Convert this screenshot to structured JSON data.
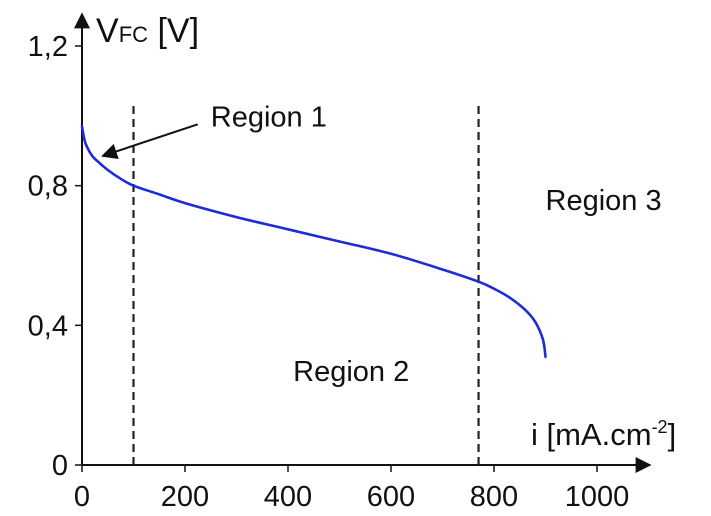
{
  "chart_data": {
    "type": "line",
    "title": "",
    "ylabel": {
      "main": "V",
      "sub": "FC",
      "unit": " [V]"
    },
    "xlabel": {
      "main": "i [mA.cm",
      "sup": "-2",
      "end": "]"
    },
    "xlim": [
      0,
      1000
    ],
    "ylim": [
      0,
      1.2
    ],
    "xticks": [
      {
        "value": 0,
        "label": "0"
      },
      {
        "value": 200,
        "label": "200"
      },
      {
        "value": 400,
        "label": "400"
      },
      {
        "value": 600,
        "label": "600"
      },
      {
        "value": 800,
        "label": "800"
      },
      {
        "value": 1000,
        "label": "1000"
      }
    ],
    "yticks": [
      {
        "value": 0,
        "label": "0"
      },
      {
        "value": 0.4,
        "label": "0,4"
      },
      {
        "value": 0.8,
        "label": "0,8"
      },
      {
        "value": 1.2,
        "label": "1,2"
      }
    ],
    "grid": false,
    "series": [
      {
        "color": "#1f2bd6",
        "x": [
          0,
          5,
          10,
          20,
          30,
          50,
          75,
          100,
          150,
          200,
          300,
          400,
          500,
          600,
          700,
          770,
          800,
          830,
          860,
          880,
          895,
          900
        ],
        "y": [
          0.97,
          0.93,
          0.91,
          0.885,
          0.87,
          0.845,
          0.82,
          0.8,
          0.775,
          0.75,
          0.71,
          0.675,
          0.64,
          0.605,
          0.56,
          0.525,
          0.505,
          0.48,
          0.445,
          0.41,
          0.36,
          0.31
        ]
      }
    ],
    "vlines": [
      {
        "x": 100,
        "style": "dashed"
      },
      {
        "x": 770,
        "style": "dashed"
      }
    ],
    "annotations": [
      {
        "text": "Region 1",
        "x": 250,
        "y": 0.97,
        "arrow_to": {
          "x": 40,
          "y": 0.885
        }
      },
      {
        "text": "Region 2",
        "x": 410,
        "y": 0.24
      },
      {
        "text": "Region 3",
        "x": 900,
        "y": 0.73
      }
    ]
  }
}
